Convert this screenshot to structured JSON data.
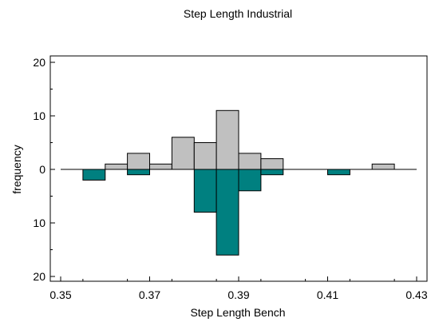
{
  "chart_data": {
    "type": "bar",
    "title": "Step Length Industrial",
    "xlabel": "Step Length Bench",
    "ylabel": "frequency",
    "bin_width": 0.005,
    "xlim": [
      0.35,
      0.43
    ],
    "ylim": [
      -20,
      20
    ],
    "x_ticks": [
      "0.35",
      "0.37",
      "0.39",
      "0.41",
      "0.43"
    ],
    "y_ticks": [
      "20",
      "10",
      "0",
      "10",
      "20"
    ],
    "grid": false,
    "series": [
      {
        "bin_starts": [
          0.355,
          0.36,
          0.365,
          0.37,
          0.375,
          0.38,
          0.385,
          0.39,
          0.395,
          0.42
        ],
        "values": [
          0,
          1,
          3,
          1,
          6,
          5,
          11,
          3,
          2,
          1
        ],
        "color": "#c0c0c0"
      },
      {
        "bin_starts": [
          0.355,
          0.365,
          0.38,
          0.385,
          0.39,
          0.395,
          0.41
        ],
        "values": [
          2,
          1,
          8,
          16,
          4,
          1,
          1
        ],
        "color": "#008080"
      }
    ]
  }
}
